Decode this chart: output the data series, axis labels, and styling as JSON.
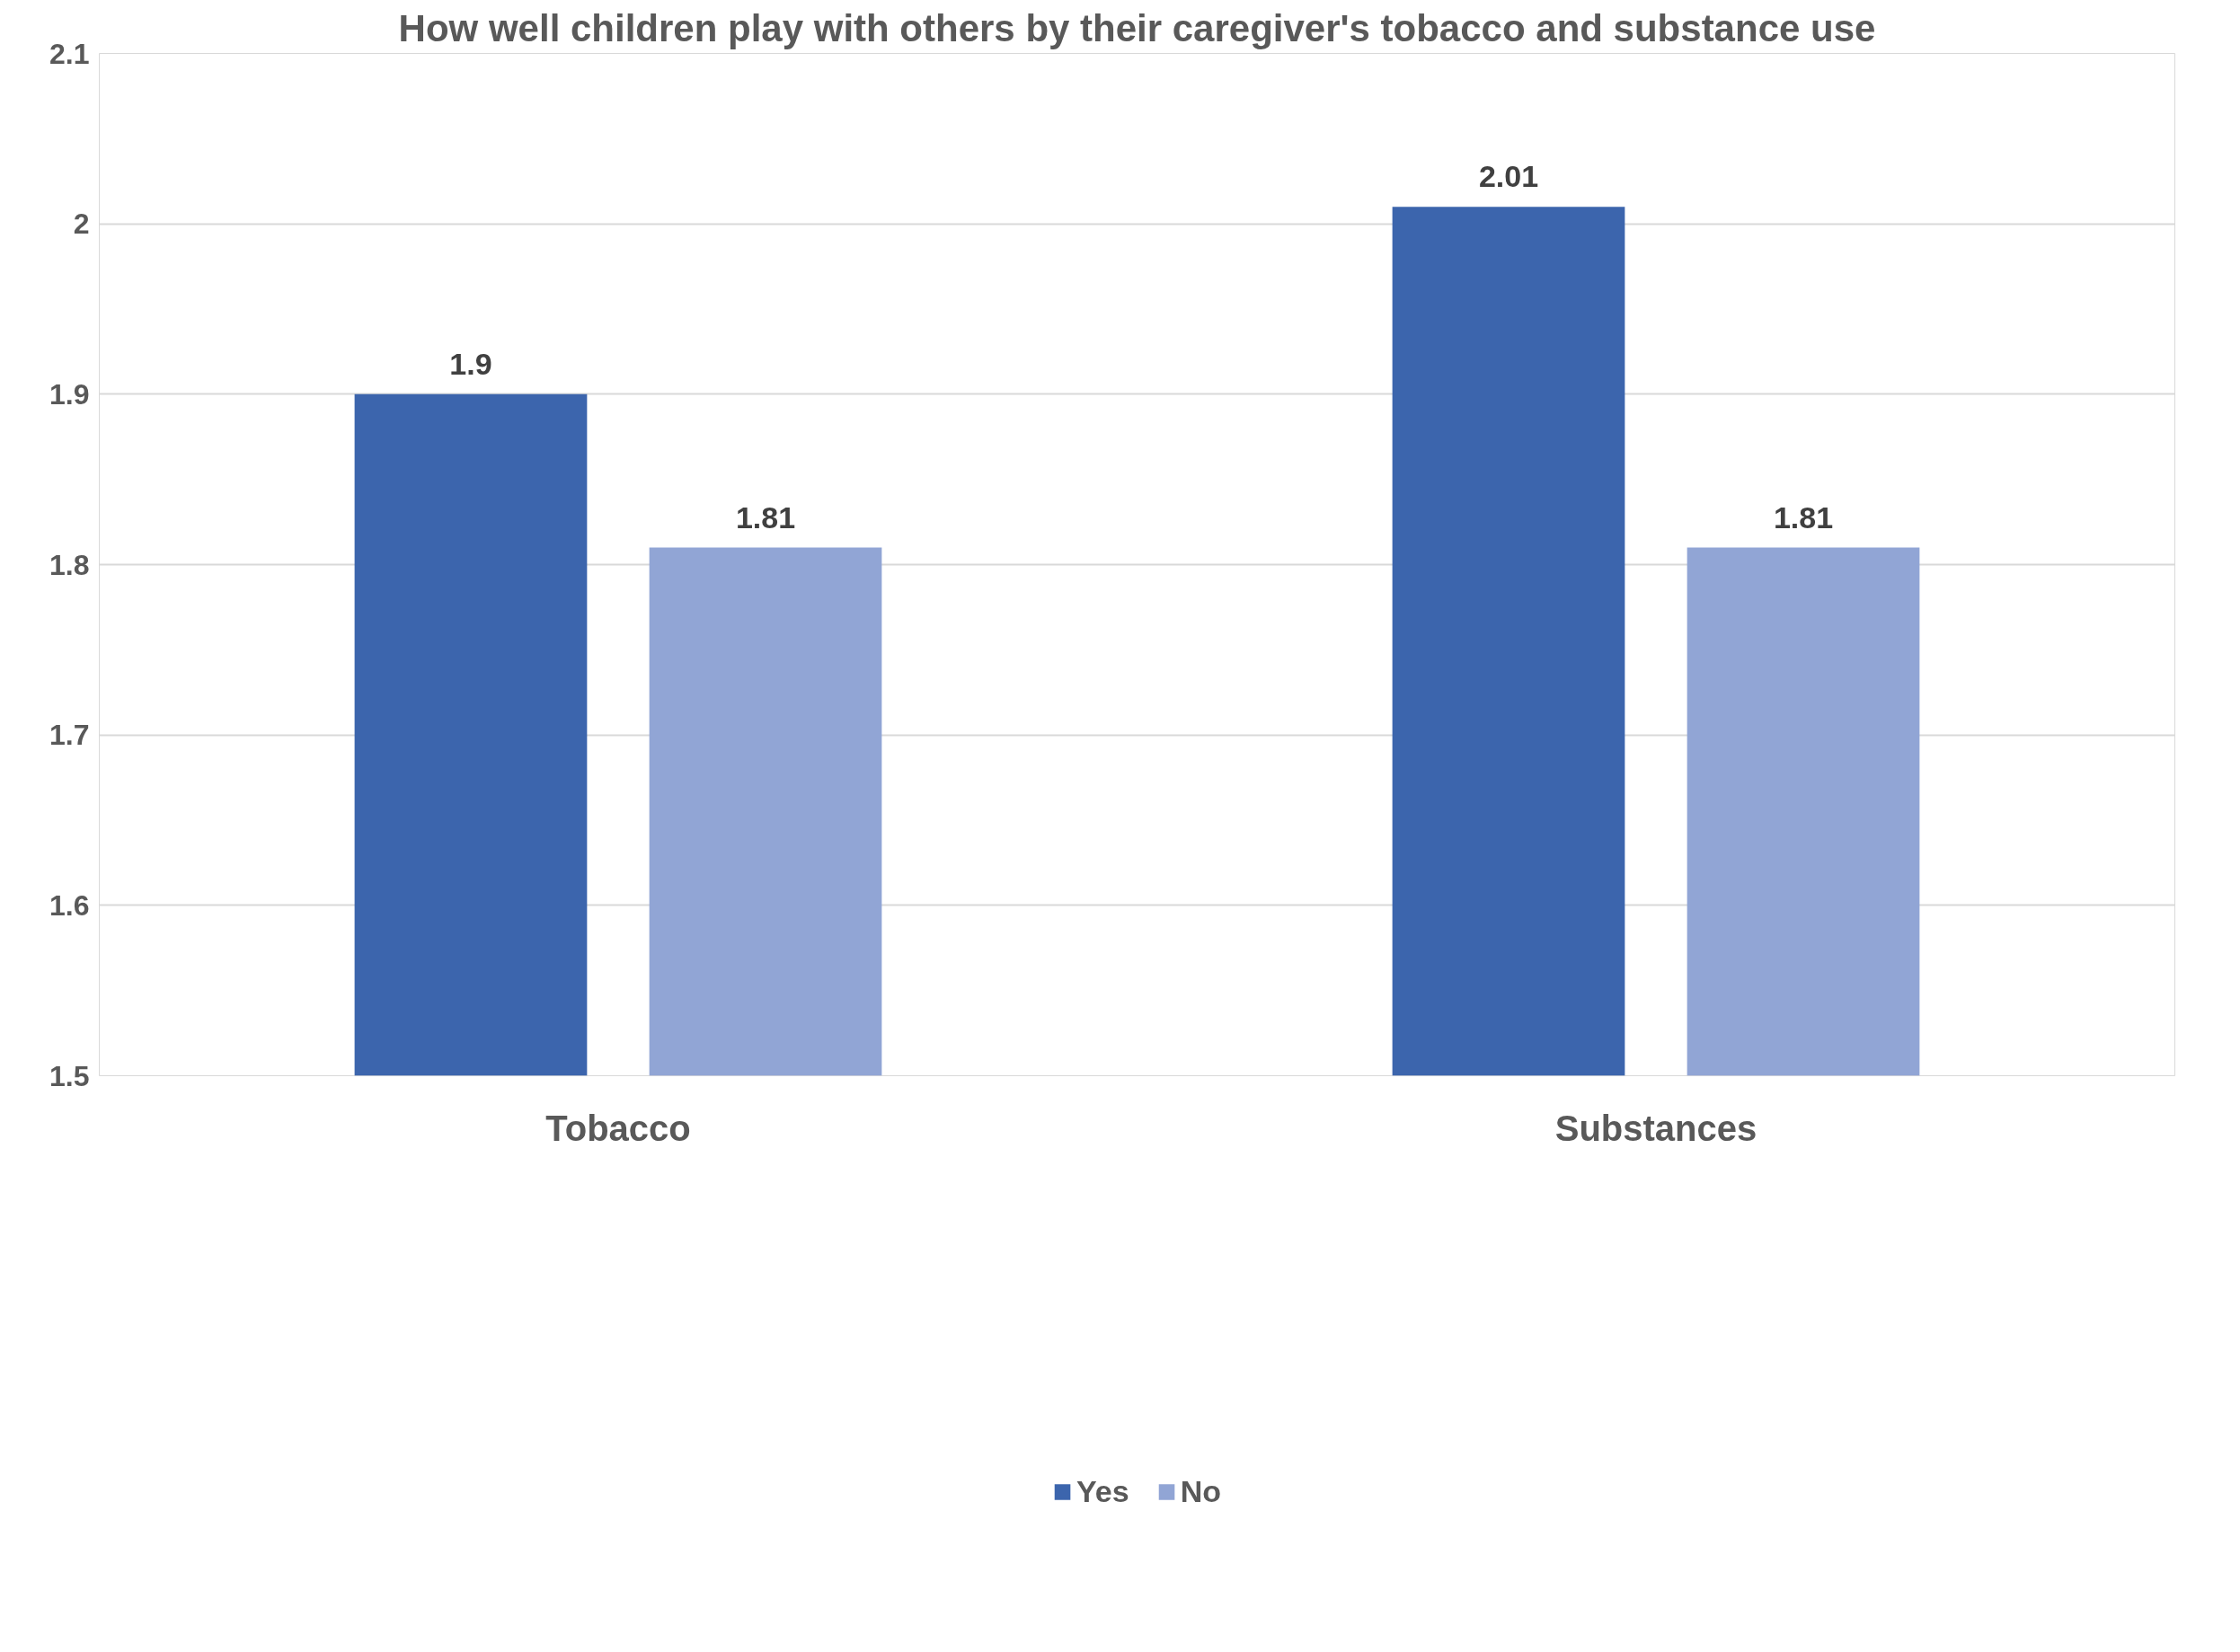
{
  "chart_data": {
    "type": "bar",
    "title": "How well children play with others by their caregiver's tobacco and substance use",
    "categories": [
      "Tobacco",
      "Substances"
    ],
    "series": [
      {
        "name": "Yes",
        "color": "#3c65ad",
        "values": [
          1.9,
          2.01
        ]
      },
      {
        "name": "No",
        "color": "#91a5d5",
        "values": [
          1.81,
          1.81
        ]
      }
    ],
    "ylim": [
      1.5,
      2.1
    ],
    "yticks": [
      1.5,
      1.6,
      1.7,
      1.8,
      1.9,
      2,
      2.1
    ],
    "grid": "y",
    "legend": "bottom",
    "data_labels": true
  }
}
